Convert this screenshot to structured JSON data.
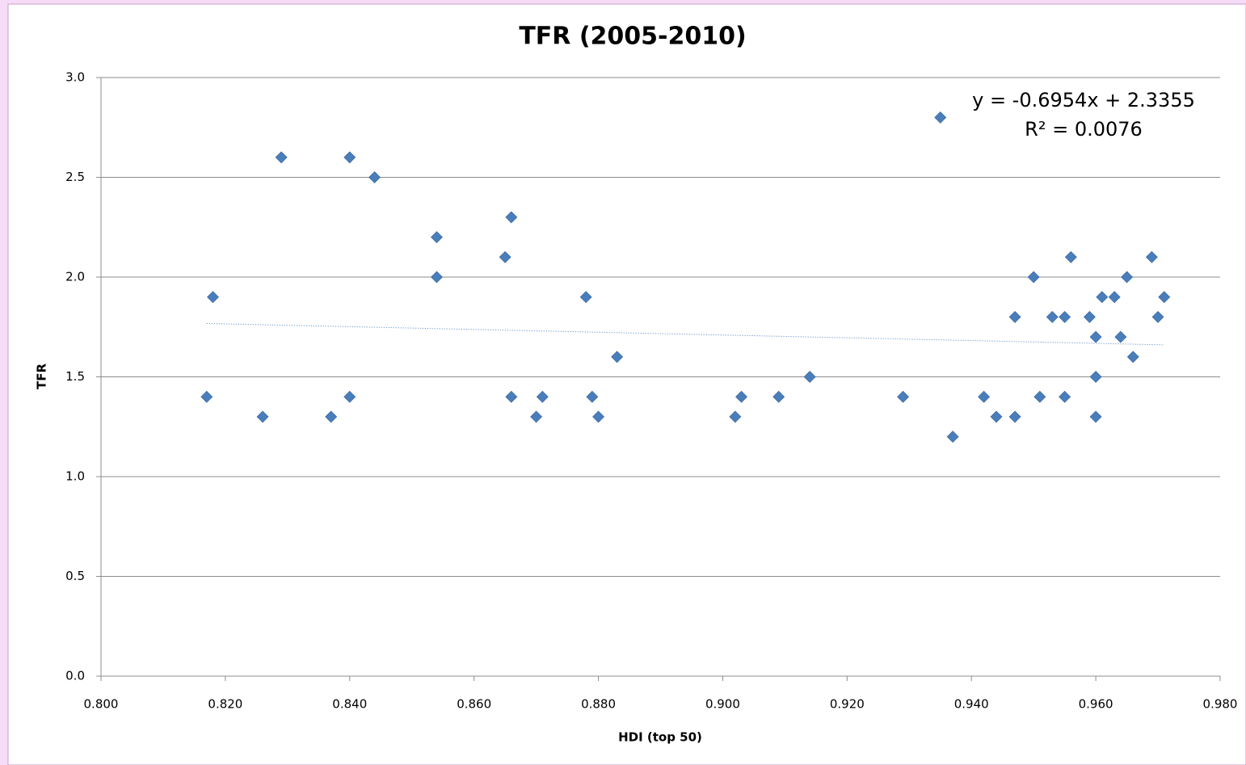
{
  "chart_data": {
    "type": "scatter",
    "title": "TFR (2005-2010)",
    "x_label": "HDI (top 50)",
    "y_label": "TFR",
    "color": "#4a7ebb",
    "grid": true,
    "xlim": [
      0.8,
      0.98
    ],
    "ylim": [
      0,
      3
    ],
    "xticks": [
      {
        "value": 0.8,
        "label": "0.800"
      },
      {
        "value": 0.82,
        "label": "0.820"
      },
      {
        "value": 0.84,
        "label": "0.840"
      },
      {
        "value": 0.86,
        "label": "0.860"
      },
      {
        "value": 0.88,
        "label": "0.880"
      },
      {
        "value": 0.9,
        "label": "0.900"
      },
      {
        "value": 0.92,
        "label": "0.920"
      },
      {
        "value": 0.94,
        "label": "0.940"
      },
      {
        "value": 0.96,
        "label": "0.960"
      },
      {
        "value": 0.98,
        "label": "0.980"
      }
    ],
    "yticks": [
      {
        "value": 0,
        "label": "0.0"
      },
      {
        "value": 0.5,
        "label": "0.5"
      },
      {
        "value": 1,
        "label": "1.0"
      },
      {
        "value": 1.5,
        "label": "1.5"
      },
      {
        "value": 2,
        "label": "2.0"
      },
      {
        "value": 2.5,
        "label": "2.5"
      },
      {
        "value": 3,
        "label": "3.0"
      }
    ],
    "x": [
      0.817,
      0.818,
      0.826,
      0.829,
      0.837,
      0.84,
      0.84,
      0.844,
      0.854,
      0.854,
      0.865,
      0.866,
      0.866,
      0.87,
      0.871,
      0.878,
      0.879,
      0.88,
      0.883,
      0.902,
      0.903,
      0.909,
      0.914,
      0.929,
      0.935,
      0.937,
      0.942,
      0.944,
      0.947,
      0.947,
      0.95,
      0.951,
      0.953,
      0.955,
      0.955,
      0.956,
      0.959,
      0.96,
      0.96,
      0.96,
      0.961,
      0.963,
      0.964,
      0.965,
      0.966,
      0.969,
      0.97,
      0.971
    ],
    "values": [
      1.4,
      1.9,
      1.3,
      2.6,
      1.3,
      2.6,
      1.4,
      2.5,
      2.2,
      2.0,
      2.1,
      2.3,
      1.4,
      1.3,
      1.4,
      1.9,
      1.4,
      1.3,
      1.6,
      1.3,
      1.4,
      1.4,
      1.5,
      1.4,
      2.8,
      1.2,
      1.4,
      1.3,
      1.8,
      1.3,
      2.0,
      1.4,
      1.8,
      1.8,
      1.4,
      2.1,
      1.8,
      1.7,
      1.5,
      1.3,
      1.9,
      1.9,
      1.7,
      2.0,
      1.6,
      2.1,
      1.8,
      1.9
    ],
    "trendline": {
      "slope": -0.6954,
      "intercept": 2.3355,
      "equation": "y = -0.6954x + 2.3355",
      "r_squared": "R² = 0.0076"
    }
  }
}
